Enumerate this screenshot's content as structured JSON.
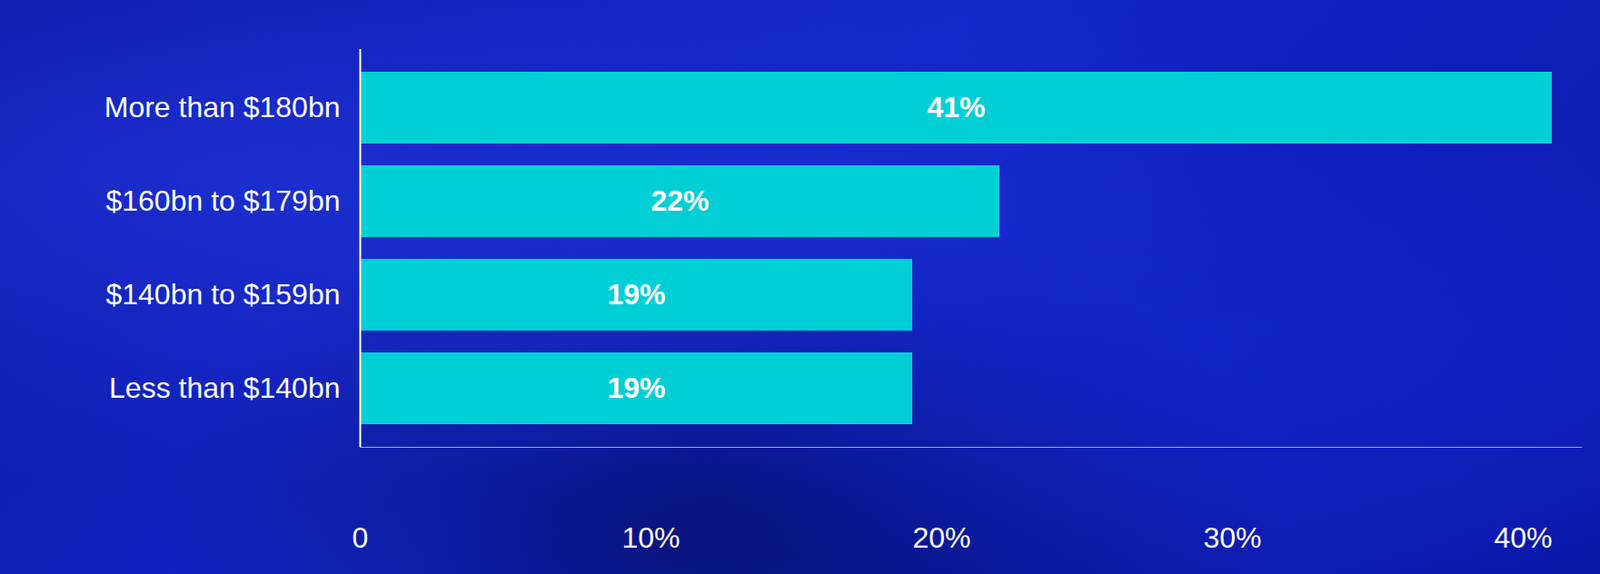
{
  "chart_data": {
    "type": "bar",
    "orientation": "horizontal",
    "categories": [
      "More than $180bn",
      "$160bn to $179bn",
      "$140bn to $159bn",
      "Less than $140bn"
    ],
    "values": [
      41,
      22,
      19,
      19
    ],
    "value_labels": [
      "41%",
      "22%",
      "19%",
      "19%"
    ],
    "data_labels": true,
    "color": "#00cfd6",
    "xlim": [
      0,
      42
    ],
    "xticks": [
      0,
      {
        "value": 10,
        "label": "10%"
      },
      {
        "value": 20,
        "label": "20%"
      },
      {
        "value": 30,
        "label": "30%"
      },
      {
        "value": 40,
        "label": "40%"
      }
    ],
    "grid": false
  }
}
